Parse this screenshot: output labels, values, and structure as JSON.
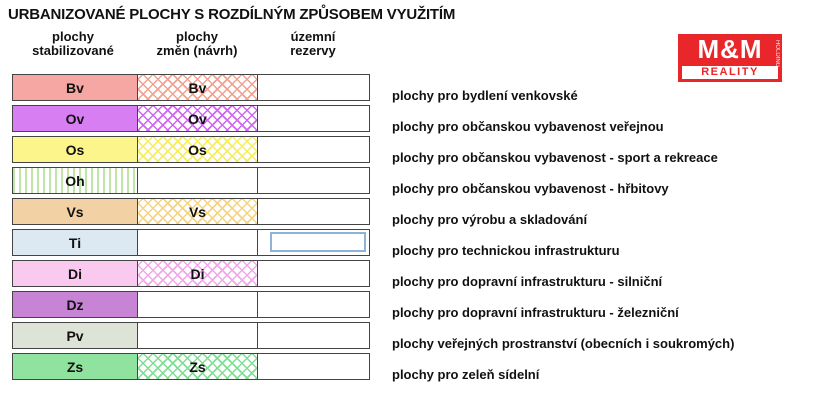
{
  "title": "URBANIZOVANÉ PLOCHY S ROZDÍLNÝM ZPŮSOBEM VYUŽITÍM",
  "headers": {
    "col1_line1": "plochy",
    "col1_line2": "stabilizované",
    "col2_line1": "plochy",
    "col2_line2": "změn (návrh)",
    "col3_line1": "územní",
    "col3_line2": "rezervy"
  },
  "logo": {
    "top": "M&M",
    "bottom": "REALITY",
    "side": "HOLDING"
  },
  "rows": [
    {
      "code": "Bv",
      "change_code": "Bv",
      "description": "plochy pro bydlení venkovské"
    },
    {
      "code": "Ov",
      "change_code": "Ov",
      "description": "plochy pro občanskou vybavenost veřejnou"
    },
    {
      "code": "Os",
      "change_code": "Os",
      "description": "plochy pro občanskou vybavenost - sport a rekreace"
    },
    {
      "code": "Oh",
      "change_code": "",
      "description": "plochy pro občanskou vybavenost - hřbitovy"
    },
    {
      "code": "Vs",
      "change_code": "Vs",
      "description": "plochy pro výrobu a skladování"
    },
    {
      "code": "Ti",
      "change_code": "",
      "description": "plochy pro technickou infrastrukturu"
    },
    {
      "code": "Di",
      "change_code": "Di",
      "description": "plochy pro dopravní infrastrukturu - silniční"
    },
    {
      "code": "Dz",
      "change_code": "",
      "description": "plochy pro dopravní infrastrukturu - železniční"
    },
    {
      "code": "Pv",
      "change_code": "",
      "description": "plochy veřejných prostranství (obecních i soukromých)"
    },
    {
      "code": "Zs",
      "change_code": "Zs",
      "description": "plochy pro zeleň sídelní"
    }
  ],
  "colors": {
    "Bv": "#f7a7a3",
    "Ov": "#d77ef2",
    "Os": "#fcf58c",
    "Oh": "#bfe6a8",
    "Vs": "#f2d2a4",
    "Ti": "#dce9f3",
    "Di": "#f9c9ef",
    "Dz": "#c783d4",
    "Pv": "#dde3d7",
    "Zs": "#8fe39f",
    "Bv_hatch": "#f3a08f",
    "Ov_hatch": "#cf66f0",
    "Os_hatch": "#f7ee55",
    "Vs_hatch": "#f6d47f",
    "Di_hatch": "#f2a7ea",
    "Zs_hatch": "#7fdd94",
    "logo_red": "#e9272b"
  }
}
